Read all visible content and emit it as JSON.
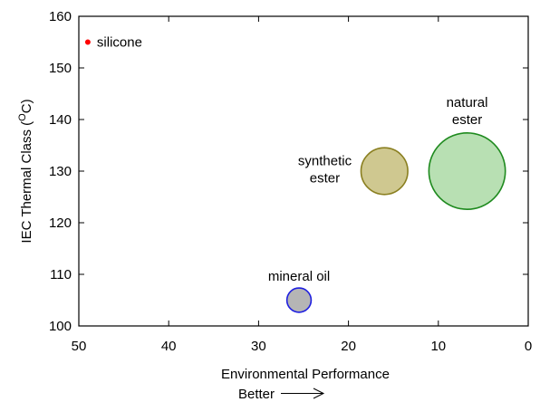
{
  "chart_data": {
    "type": "scatter",
    "subtype": "bubble",
    "title": "",
    "xlabel": "Environmental Performance",
    "xlabel_sub": "Better",
    "ylabel": "IEC Thermal Class (",
    "ylabel_sup": "O",
    "ylabel_end": "C)",
    "x_reversed": true,
    "xlim": [
      0,
      50
    ],
    "ylim": [
      100,
      160
    ],
    "xticks": [
      50,
      40,
      30,
      20,
      10,
      0
    ],
    "yticks": [
      100,
      110,
      120,
      130,
      140,
      150,
      160
    ],
    "grid": false,
    "legend": "none",
    "points": [
      {
        "label": "silicone",
        "x": 49,
        "y": 155,
        "size": 0.4,
        "fill": "#ff0000",
        "stroke": "#ff0000"
      },
      {
        "label": "mineral oil",
        "x": 25.5,
        "y": 105,
        "size": 2.5,
        "fill": "#b5b5b5",
        "stroke": "#1f1fdf"
      },
      {
        "label_lines": [
          "synthetic",
          "ester"
        ],
        "x": 16,
        "y": 130,
        "size": 5,
        "fill": "#cfc890",
        "stroke": "#8a7f20"
      },
      {
        "label_lines": [
          "natural",
          "ester"
        ],
        "x": 6.8,
        "y": 130,
        "size": 8.3,
        "fill": "#b8e0b3",
        "stroke": "#1e8a1e"
      }
    ]
  }
}
